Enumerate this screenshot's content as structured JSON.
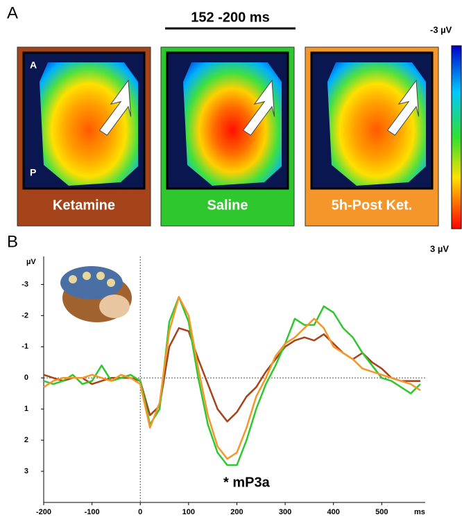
{
  "panel_labels": [
    "A",
    "B"
  ],
  "topomaps": {
    "title": "152 -200 ms",
    "orientation_labels": [
      "A",
      "P"
    ],
    "colorbar": {
      "top": "-3 µV",
      "bottom": "3 µV"
    }
  },
  "chart_data": {
    "type": "line",
    "ylabel": "µV",
    "xlabel": "ms",
    "annotation": "* mP3a",
    "x": [
      -200,
      -180,
      -160,
      -140,
      -120,
      -100,
      -80,
      -60,
      -40,
      -20,
      0,
      20,
      40,
      60,
      80,
      100,
      120,
      140,
      160,
      180,
      200,
      220,
      240,
      260,
      280,
      300,
      320,
      340,
      360,
      380,
      400,
      420,
      440,
      460,
      480,
      500,
      520,
      540,
      560,
      580
    ],
    "series": [
      {
        "name": "Ketamine",
        "color": "#a5431a",
        "values": [
          -0.1,
          0,
          0.1,
          0,
          0,
          0.2,
          0.1,
          0,
          0,
          0,
          0.1,
          1.2,
          0.9,
          -1.0,
          -1.6,
          -1.5,
          -0.6,
          0.2,
          1.0,
          1.4,
          1.1,
          0.6,
          0.3,
          -0.2,
          -0.6,
          -1.0,
          -1.2,
          -1.3,
          -1.2,
          -1.4,
          -1.1,
          -0.8,
          -0.6,
          -0.8,
          -0.5,
          -0.3,
          0,
          0.1,
          0.1,
          0.1
        ]
      },
      {
        "name": "Saline",
        "color": "#2ec82e",
        "values": [
          0.1,
          0.2,
          0.1,
          -0.1,
          0.2,
          0.1,
          -0.4,
          0.1,
          0,
          -0.1,
          0.1,
          1.5,
          1.0,
          -1.8,
          -2.6,
          -1.8,
          0,
          1.5,
          2.4,
          2.8,
          2.8,
          2.0,
          1.0,
          0.2,
          -0.4,
          -1.1,
          -1.9,
          -1.7,
          -1.7,
          -2.3,
          -2.1,
          -1.6,
          -1.3,
          -0.8,
          -0.4,
          0,
          0.1,
          0.3,
          0.5,
          0.2
        ]
      },
      {
        "name": "5h-Post Ket.",
        "color": "#f5962a",
        "values": [
          0.3,
          0.1,
          0,
          0,
          0,
          -0.1,
          0,
          0.1,
          -0.1,
          0,
          0.2,
          1.6,
          0.8,
          -1.5,
          -2.6,
          -2.0,
          -0.3,
          1.2,
          2.2,
          2.6,
          2.4,
          1.6,
          0.6,
          0,
          -0.7,
          -1.1,
          -1.3,
          -1.6,
          -1.9,
          -1.6,
          -1.0,
          -0.8,
          -0.6,
          -0.3,
          -0.2,
          -0.1,
          0,
          0.1,
          0.2,
          0.4
        ]
      }
    ],
    "xlim": [
      -200,
      590
    ],
    "xticks": [
      -200,
      -100,
      0,
      100,
      200,
      300,
      400,
      500
    ],
    "ylim": [
      -3.9,
      4
    ],
    "y_inverted": true,
    "yticks": [
      -3,
      -2,
      -1,
      0,
      1,
      2,
      3
    ]
  }
}
